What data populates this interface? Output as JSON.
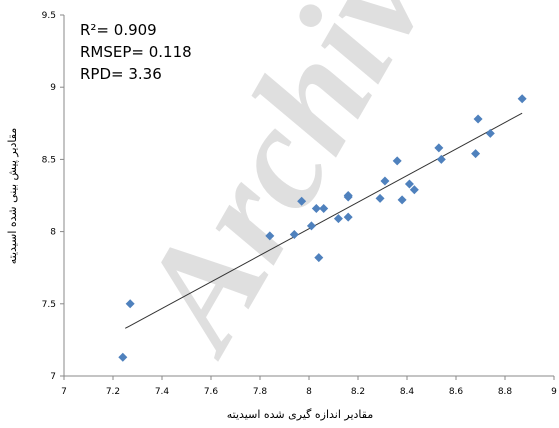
{
  "chart_data": {
    "type": "scatter",
    "xlabel": "مقادیر اندازه گیری شده اسیدیته",
    "ylabel": "مقادیر پیش بینی شده اسیدیته",
    "annotations": [
      "R²= 0.909",
      "RMSEP= 0.118",
      "RPD= 3.36"
    ],
    "watermark": "Archive",
    "color": "#4f81bd",
    "x": [
      7.24,
      7.27,
      7.84,
      7.94,
      7.97,
      8.01,
      8.03,
      8.04,
      8.06,
      8.12,
      8.16,
      8.16,
      8.16,
      8.29,
      8.31,
      8.36,
      8.38,
      8.41,
      8.43,
      8.53,
      8.54,
      8.68,
      8.69,
      8.74,
      8.87
    ],
    "y": [
      7.13,
      7.5,
      7.97,
      7.98,
      8.21,
      8.04,
      8.16,
      7.82,
      8.16,
      8.09,
      8.1,
      8.24,
      8.25,
      8.23,
      8.35,
      8.49,
      8.22,
      8.33,
      8.29,
      8.58,
      8.5,
      8.54,
      8.78,
      8.68,
      8.92
    ],
    "trendline": {
      "x": [
        7.25,
        8.87
      ],
      "y": [
        7.33,
        8.82
      ]
    },
    "xlim": [
      7,
      9
    ],
    "xticks": [
      7,
      7.2,
      7.4,
      7.6,
      7.8,
      8,
      8.2,
      8.4,
      8.6,
      8.8,
      9
    ],
    "ylim": [
      7,
      9.5
    ],
    "yticks": [
      7,
      7.5,
      8,
      8.5,
      9,
      9.5
    ]
  }
}
